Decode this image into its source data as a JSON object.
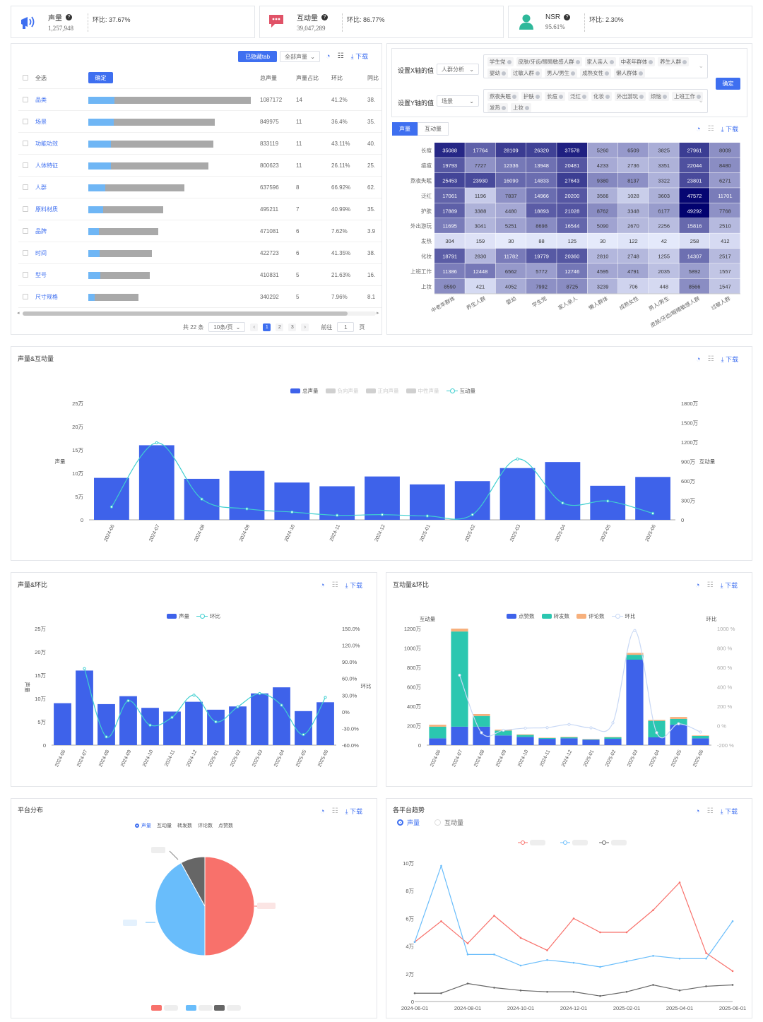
{
  "kpis": [
    {
      "label": "声量",
      "value": "1,257,948",
      "ratio": "环比: 37.67%",
      "color": "#3e6ff0"
    },
    {
      "label": "互动量",
      "value": "39,047,289",
      "ratio": "环比: 86.77%",
      "color": "#e05267"
    },
    {
      "label": "NSR",
      "value": "95.61%",
      "ratio": "环比: 2.30%",
      "color": "#2fb89a"
    }
  ],
  "table_panel": {
    "hidden_tab_button": "已隐藏tab",
    "filter_select": "全部声量",
    "download": "下载",
    "select_all": "全选",
    "confirm": "确定",
    "headers": [
      "总声量",
      "声量占比",
      "环比",
      "同比"
    ],
    "rows": [
      {
        "name": "品类",
        "total": "1087172",
        "share": "14",
        "mom": "41.2%",
        "yoy": "38.",
        "blue": 0.16,
        "total_frac": 1.0
      },
      {
        "name": "场景",
        "total": "849975",
        "share": "11",
        "mom": "36.4%",
        "yoy": "35.",
        "blue": 0.2,
        "total_frac": 0.78
      },
      {
        "name": "功能功效",
        "total": "833119",
        "share": "11",
        "mom": "43.11%",
        "yoy": "40.",
        "blue": 0.18,
        "total_frac": 0.77
      },
      {
        "name": "人体特征",
        "total": "800623",
        "share": "11",
        "mom": "26.11%",
        "yoy": "25.",
        "blue": 0.19,
        "total_frac": 0.74
      },
      {
        "name": "人群",
        "total": "637596",
        "share": "8",
        "mom": "66.92%",
        "yoy": "62.",
        "blue": 0.18,
        "total_frac": 0.59
      },
      {
        "name": "原料材质",
        "total": "495211",
        "share": "7",
        "mom": "40.99%",
        "yoy": "35.",
        "blue": 0.2,
        "total_frac": 0.46
      },
      {
        "name": "品牌",
        "total": "471081",
        "share": "6",
        "mom": "7.62%",
        "yoy": "3.9",
        "blue": 0.15,
        "total_frac": 0.43
      },
      {
        "name": "时间",
        "total": "422723",
        "share": "6",
        "mom": "41.35%",
        "yoy": "38.",
        "blue": 0.18,
        "total_frac": 0.39
      },
      {
        "name": "型号",
        "total": "410831",
        "share": "5",
        "mom": "21.63%",
        "yoy": "16.",
        "blue": 0.19,
        "total_frac": 0.38
      },
      {
        "name": "尺寸规格",
        "total": "340292",
        "share": "5",
        "mom": "7.96%",
        "yoy": "8.1",
        "blue": 0.13,
        "total_frac": 0.31
      }
    ],
    "pager": {
      "total": "共 22 条",
      "page_size": "10条/页",
      "pages": [
        "1",
        "2",
        "3"
      ],
      "goto": "前往",
      "goto_value": "1",
      "goto_suffix": "页"
    }
  },
  "heatmap_panel": {
    "x_label": "设置X轴的值",
    "x_select": "人群分析",
    "x_tags": [
      "学生党",
      "皮肤/牙齿/眼睛敏感人群",
      "家人亲人",
      "中老年群体",
      "养生人群",
      "婴幼",
      "过敏人群",
      "男人/男生",
      "成熟女性",
      "懒人群体"
    ],
    "y_label": "设置Y轴的值",
    "y_select": "场景",
    "y_tags": [
      "熬夜失眠",
      "护肤",
      "长痘",
      "泛红",
      "化妆",
      "外出游玩",
      "烦恼",
      "上班工作",
      "发热",
      "上妆"
    ],
    "confirm": "确定",
    "tabs": [
      "声量",
      "互动量"
    ],
    "download": "下载"
  },
  "heatmap": {
    "rows": [
      "长痘",
      "痘痘",
      "熬夜失眠",
      "泛红",
      "护肤",
      "外出游玩",
      "发热",
      "化妆",
      "上班工作",
      "上妆"
    ],
    "cols": [
      "中老年群体",
      "养生人群",
      "婴幼",
      "学生党",
      "家人亲人",
      "懒人群体",
      "成熟女性",
      "男人/男生",
      "皮肤/牙齿/眼睛敏感人群",
      "过敏人群"
    ],
    "values": [
      [
        35088,
        17764,
        28109,
        26320,
        37578,
        5260,
        6509,
        3825,
        27961,
        8009
      ],
      [
        19793,
        7727,
        12336,
        13948,
        20481,
        4233,
        2736,
        3351,
        22044,
        8480
      ],
      [
        25453,
        23930,
        16090,
        14833,
        27643,
        9380,
        8137,
        3322,
        23801,
        6271
      ],
      [
        17061,
        1196,
        7837,
        14966,
        20200,
        3566,
        1028,
        3603,
        47572,
        11701
      ],
      [
        17889,
        3388,
        4480,
        18893,
        21028,
        8762,
        3348,
        6177,
        49292,
        7768
      ],
      [
        11695,
        3041,
        5251,
        8698,
        16544,
        5090,
        2670,
        2256,
        15816,
        2510
      ],
      [
        304,
        159,
        30,
        88,
        125,
        30,
        122,
        42,
        258,
        412
      ],
      [
        18791,
        2830,
        11782,
        19779,
        20360,
        2810,
        2748,
        1255,
        14307,
        2517
      ],
      [
        11386,
        12448,
        6562,
        5772,
        12746,
        4595,
        4791,
        2035,
        5892,
        1557
      ],
      [
        8590,
        421,
        4052,
        7992,
        8725,
        3239,
        706,
        448,
        8566,
        1547
      ]
    ]
  },
  "chart_data": [
    {
      "id": "voice_interaction",
      "type": "bar",
      "title": "声量&互动量",
      "categories": [
        "2024-06",
        "2024-07",
        "2024-08",
        "2024-09",
        "2024-10",
        "2024-11",
        "2024-12",
        "2025-01",
        "2025-02",
        "2025-03",
        "2025-04",
        "2025-05",
        "2025-06"
      ],
      "ylabel": "声量",
      "y2label": "互动量",
      "ylim": [
        0,
        250000
      ],
      "y2lim": [
        0,
        18000000
      ],
      "y_ticks": [
        "0",
        "5万",
        "10万",
        "15万",
        "20万",
        "25万"
      ],
      "y2_ticks": [
        "0",
        "300万",
        "600万",
        "900万",
        "1200万",
        "1500万",
        "1800万"
      ],
      "legend": [
        "总声量",
        "负向声量",
        "正向声量",
        "中性声量",
        "互动量"
      ],
      "series": [
        {
          "name": "总声量",
          "values": [
            90000,
            160000,
            88000,
            105000,
            80000,
            72000,
            93000,
            76000,
            83000,
            111000,
            124000,
            73000,
            92000
          ]
        },
        {
          "name": "互动量",
          "values": [
            2000000,
            11900000,
            3200000,
            1700000,
            1200000,
            700000,
            800000,
            600000,
            800000,
            9400000,
            2600000,
            2900000,
            1000000
          ]
        }
      ]
    },
    {
      "id": "voice_mom",
      "type": "bar",
      "title": "声量&环比",
      "categories": [
        "2024-06",
        "2024-07",
        "2024-08",
        "2024-09",
        "2024-10",
        "2024-11",
        "2024-12",
        "2025-01",
        "2025-02",
        "2025-03",
        "2025-04",
        "2025-05",
        "2025-06"
      ],
      "ylabel": "声量",
      "y2label": "环比",
      "ylim": [
        0,
        250000
      ],
      "y2lim": [
        -60,
        150
      ],
      "y_ticks": [
        "0",
        "5万",
        "10万",
        "15万",
        "20万",
        "25万"
      ],
      "y2_ticks": [
        "-60.0%",
        "-30.0%",
        "0%",
        "30.0%",
        "60.0%",
        "90.0%",
        "120.0%",
        "150.0%"
      ],
      "legend": [
        "声量",
        "环比"
      ],
      "series": [
        {
          "name": "声量",
          "values": [
            90000,
            160000,
            88000,
            105000,
            80000,
            72000,
            93000,
            76000,
            83000,
            111000,
            124000,
            73000,
            92000
          ]
        },
        {
          "name": "环比",
          "values": [
            null,
            78,
            -45,
            20,
            -24,
            -10,
            30,
            -18,
            9,
            33,
            12,
            -41,
            26
          ]
        }
      ]
    },
    {
      "id": "interaction_mom",
      "type": "bar",
      "title": "互动量&环比",
      "categories": [
        "2024-06",
        "2024-07",
        "2024-08",
        "2024-09",
        "2024-10",
        "2024-11",
        "2024-12",
        "2025-01",
        "2025-02",
        "2025-03",
        "2025-04",
        "2025-05",
        "2025-06"
      ],
      "ylabel": "互动量",
      "y2label": "环比",
      "ylim": [
        0,
        12000000
      ],
      "y2lim": [
        -200,
        1000
      ],
      "y_ticks": [
        "0",
        "200万",
        "400万",
        "600万",
        "800万",
        "1000万",
        "1200万"
      ],
      "y2_ticks": [
        "-200 %",
        "0 %",
        "200 %",
        "400 %",
        "600 %",
        "800 %",
        "1000 %"
      ],
      "legend": [
        "点赞数",
        "转发数",
        "评论数",
        "环比"
      ],
      "series": [
        {
          "name": "点赞数",
          "values": [
            700000,
            1900000,
            1900000,
            1000000,
            850000,
            650000,
            700000,
            550000,
            650000,
            8800000,
            800000,
            2100000,
            700000
          ]
        },
        {
          "name": "转发数",
          "values": [
            1200000,
            9800000,
            1100000,
            500000,
            200000,
            80000,
            100000,
            50000,
            150000,
            500000,
            1700000,
            600000,
            250000
          ]
        },
        {
          "name": "评论数",
          "values": [
            200000,
            300000,
            200000,
            100000,
            60000,
            40000,
            50000,
            30000,
            40000,
            200000,
            100000,
            200000,
            50000
          ]
        },
        {
          "name": "环比",
          "values": [
            null,
            520,
            -72,
            -47,
            -25,
            -20,
            13,
            -22,
            30,
            980,
            -72,
            20,
            -65
          ]
        }
      ]
    },
    {
      "id": "platform_pie",
      "type": "pie",
      "title": "平台分布",
      "legend": [
        "声量",
        "互动量",
        "转发数",
        "评论数",
        "点赞数"
      ],
      "values": [
        50,
        42,
        8
      ],
      "colors": [
        "#f8716b",
        "#69bdfb",
        "#666666"
      ]
    },
    {
      "id": "platform_trend",
      "type": "line",
      "title": "各平台趋势",
      "x": [
        "2024-06-01",
        "2024-07-01",
        "2024-08-01",
        "2024-09-01",
        "2024-10-01",
        "2024-11-01",
        "2024-12-01",
        "2025-01-01",
        "2025-02-01",
        "2025-03-01",
        "2025-04-01",
        "2025-05-01",
        "2025-06-01"
      ],
      "x_ticks": [
        "2024-06-01",
        "2024-08-01",
        "2024-10-01",
        "2024-12-01",
        "2025-02-01",
        "2025-04-01",
        "2025-06-01"
      ],
      "ylim": [
        0,
        100000
      ],
      "y_ticks": [
        "0",
        "2万",
        "4万",
        "6万",
        "8万",
        "10万"
      ],
      "series": [
        {
          "color": "#f8716b",
          "values": [
            43000,
            58000,
            42000,
            62000,
            46000,
            37000,
            60000,
            50000,
            50000,
            66000,
            86000,
            35000,
            22000
          ]
        },
        {
          "color": "#69bdfb",
          "values": [
            43000,
            98000,
            34000,
            34000,
            26000,
            30000,
            28000,
            25000,
            29000,
            33000,
            31000,
            31000,
            58000
          ]
        },
        {
          "color": "#666666",
          "values": [
            6000,
            6000,
            13000,
            10000,
            8000,
            7000,
            7000,
            4000,
            7000,
            12000,
            8000,
            11000,
            12000
          ]
        }
      ]
    }
  ],
  "panels": {
    "chart1_title": "声量&互动量",
    "chart2_title": "声量&环比",
    "chart3_title": "互动量&环比",
    "chart4_title": "平台分布",
    "chart5_title": "各平台趋势",
    "download": "下载",
    "trend_radio": [
      "声量",
      "互动量"
    ]
  }
}
